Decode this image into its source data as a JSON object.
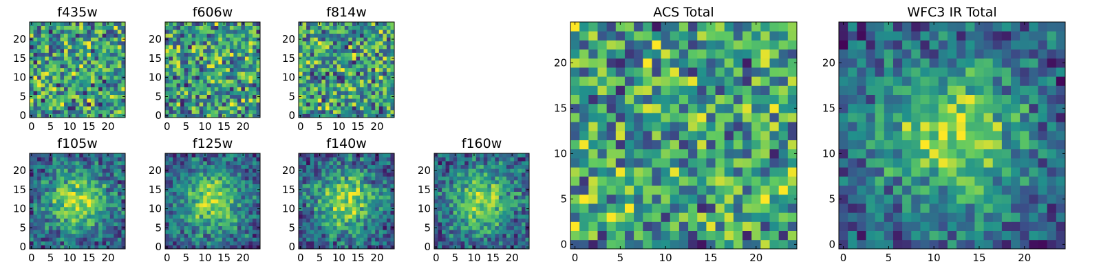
{
  "chart_data": [
    {
      "type": "heatmap",
      "title": "f435w",
      "grid": [
        25,
        25
      ],
      "xlim": [
        -0.5,
        24.5
      ],
      "ylim": [
        -0.5,
        24.5
      ],
      "xticks": [
        0,
        5,
        10,
        15,
        20
      ],
      "yticks": [
        0,
        5,
        10,
        15,
        20
      ],
      "pattern": "noise",
      "seed": 11
    },
    {
      "type": "heatmap",
      "title": "f606w",
      "grid": [
        25,
        25
      ],
      "xlim": [
        -0.5,
        24.5
      ],
      "ylim": [
        -0.5,
        24.5
      ],
      "xticks": [
        0,
        5,
        10,
        15,
        20
      ],
      "yticks": [
        0,
        5,
        10,
        15,
        20
      ],
      "pattern": "noise",
      "seed": 23
    },
    {
      "type": "heatmap",
      "title": "f814w",
      "grid": [
        25,
        25
      ],
      "xlim": [
        -0.5,
        24.5
      ],
      "ylim": [
        -0.5,
        24.5
      ],
      "xticks": [
        0,
        5,
        10,
        15,
        20
      ],
      "yticks": [
        0,
        5,
        10,
        15,
        20
      ],
      "pattern": "noise",
      "seed": 37
    },
    {
      "type": "heatmap",
      "title": "f105w",
      "grid": [
        25,
        25
      ],
      "xlim": [
        -0.5,
        24.5
      ],
      "ylim": [
        -0.5,
        24.5
      ],
      "xticks": [
        0,
        5,
        10,
        15,
        20
      ],
      "yticks": [
        0,
        5,
        10,
        15,
        20
      ],
      "pattern": "blob",
      "seed": 41
    },
    {
      "type": "heatmap",
      "title": "f125w",
      "grid": [
        25,
        25
      ],
      "xlim": [
        -0.5,
        24.5
      ],
      "ylim": [
        -0.5,
        24.5
      ],
      "xticks": [
        0,
        5,
        10,
        15,
        20
      ],
      "yticks": [
        0,
        5,
        10,
        15,
        20
      ],
      "pattern": "blob",
      "seed": 53
    },
    {
      "type": "heatmap",
      "title": "f140w",
      "grid": [
        25,
        25
      ],
      "xlim": [
        -0.5,
        24.5
      ],
      "ylim": [
        -0.5,
        24.5
      ],
      "xticks": [
        0,
        5,
        10,
        15,
        20
      ],
      "yticks": [
        0,
        5,
        10,
        15,
        20
      ],
      "pattern": "blob",
      "seed": 67
    },
    {
      "type": "heatmap",
      "title": "f160w",
      "grid": [
        25,
        25
      ],
      "xlim": [
        -0.5,
        24.5
      ],
      "ylim": [
        -0.5,
        24.5
      ],
      "xticks": [
        0,
        5,
        10,
        15,
        20
      ],
      "yticks": [
        0,
        5,
        10,
        15,
        20
      ],
      "pattern": "blob",
      "seed": 79
    },
    {
      "type": "heatmap",
      "title": "ACS Total",
      "grid": [
        25,
        25
      ],
      "xlim": [
        -0.5,
        24.5
      ],
      "ylim": [
        -0.5,
        24.5
      ],
      "xticks": [
        0,
        5,
        10,
        15,
        20
      ],
      "yticks": [
        0,
        5,
        10,
        15,
        20
      ],
      "pattern": "noise",
      "seed": 97
    },
    {
      "type": "heatmap",
      "title": "WFC3 IR Total",
      "grid": [
        25,
        25
      ],
      "xlim": [
        -0.5,
        24.5
      ],
      "ylim": [
        -0.5,
        24.5
      ],
      "xticks": [
        0,
        5,
        10,
        15,
        20
      ],
      "yticks": [
        0,
        5,
        10,
        15,
        20
      ],
      "pattern": "blob",
      "seed": 101
    }
  ],
  "colormap": [
    "#440154",
    "#3b528b",
    "#21918c",
    "#5ec962",
    "#fde725"
  ]
}
